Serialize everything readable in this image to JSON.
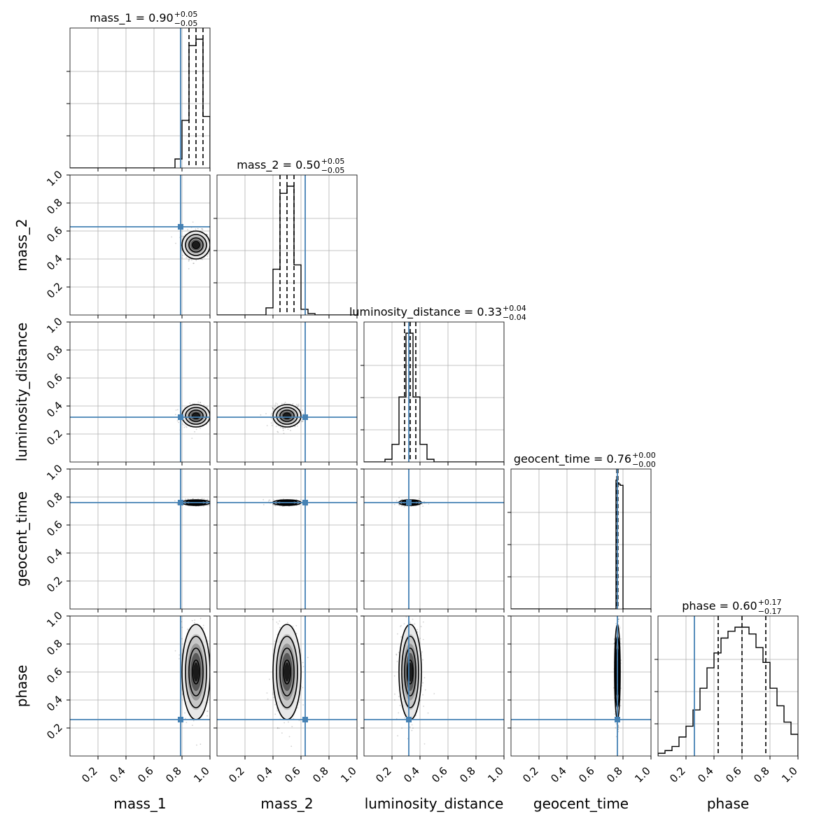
{
  "chart_data": {
    "type": "corner",
    "parameters": [
      "mass_1",
      "mass_2",
      "luminosity_distance",
      "geocent_time",
      "phase"
    ],
    "axis_labels": [
      "mass_1",
      "mass_2",
      "luminosity_distance",
      "geocent_time",
      "phase"
    ],
    "xlim": [
      0,
      1
    ],
    "ylim": [
      0,
      1
    ],
    "xticks": [
      0.2,
      0.4,
      0.6,
      0.8,
      1.0
    ],
    "xtick_labels": [
      "0.2",
      "0.4",
      "0.6",
      "0.8",
      "1.0"
    ],
    "yticks": [
      0.2,
      0.4,
      0.6,
      0.8,
      1.0
    ],
    "ytick_labels": [
      "0.2",
      "0.4",
      "0.6",
      "0.8",
      "1.0"
    ],
    "grid": true,
    "truth_color": "#4682b4",
    "hist_color": "#000000",
    "titles": [
      {
        "param": "mass_1",
        "text": "mass_1 = 0.90",
        "upper": "+0.05",
        "lower": "−0.05"
      },
      {
        "param": "mass_2",
        "text": "mass_2 = 0.50",
        "upper": "+0.05",
        "lower": "−0.05"
      },
      {
        "param": "luminosity_distance",
        "text": "luminosity_distance = 0.33",
        "upper": "+0.04",
        "lower": "−0.04"
      },
      {
        "param": "geocent_time",
        "text": "geocent_time = 0.76",
        "upper": "+0.00",
        "lower": "−0.00"
      },
      {
        "param": "phase",
        "text": "phase = 0.60",
        "upper": "+0.17",
        "lower": "−0.17"
      }
    ],
    "truths": [
      0.79,
      0.63,
      0.32,
      0.76,
      0.26
    ],
    "medians": [
      0.9,
      0.5,
      0.33,
      0.76,
      0.6
    ],
    "quantiles": [
      [
        0.85,
        0.9,
        0.95
      ],
      [
        0.45,
        0.5,
        0.55
      ],
      [
        0.29,
        0.33,
        0.37
      ],
      [
        0.756,
        0.76,
        0.764
      ],
      [
        0.43,
        0.6,
        0.77
      ]
    ],
    "sigmas": [
      0.05,
      0.05,
      0.04,
      0.01,
      0.17
    ],
    "marginals": [
      {
        "edges": [
          0.75,
          0.8,
          0.85,
          0.9,
          0.95,
          1.0
        ],
        "counts": [
          0.07,
          0.37,
          0.95,
          1.0,
          0.4
        ]
      },
      {
        "edges": [
          0.35,
          0.4,
          0.45,
          0.5,
          0.55,
          0.6,
          0.65,
          0.7
        ],
        "counts": [
          0.05,
          0.32,
          0.85,
          0.9,
          0.35,
          0.04,
          0.01
        ]
      },
      {
        "edges": [
          0.15,
          0.2,
          0.25,
          0.3,
          0.35,
          0.4,
          0.45,
          0.5
        ],
        "counts": [
          0.02,
          0.13,
          0.48,
          0.95,
          0.48,
          0.13,
          0.02
        ]
      },
      {
        "edges": [
          0.75,
          0.76,
          0.77,
          0.78,
          0.79,
          0.8
        ],
        "counts": [
          1.0,
          0.98,
          0.97,
          0.96,
          0.96
        ]
      },
      {
        "edges": [
          0.0,
          0.05,
          0.1,
          0.15,
          0.2,
          0.25,
          0.3,
          0.35,
          0.4,
          0.45,
          0.5,
          0.55,
          0.6,
          0.65,
          0.7,
          0.75,
          0.8,
          0.85,
          0.9,
          0.95,
          1.0
        ],
        "counts": [
          0.02,
          0.04,
          0.07,
          0.14,
          0.22,
          0.34,
          0.5,
          0.65,
          0.76,
          0.87,
          0.92,
          0.95,
          0.95,
          0.9,
          0.8,
          0.69,
          0.5,
          0.37,
          0.25,
          0.16
        ]
      }
    ]
  }
}
